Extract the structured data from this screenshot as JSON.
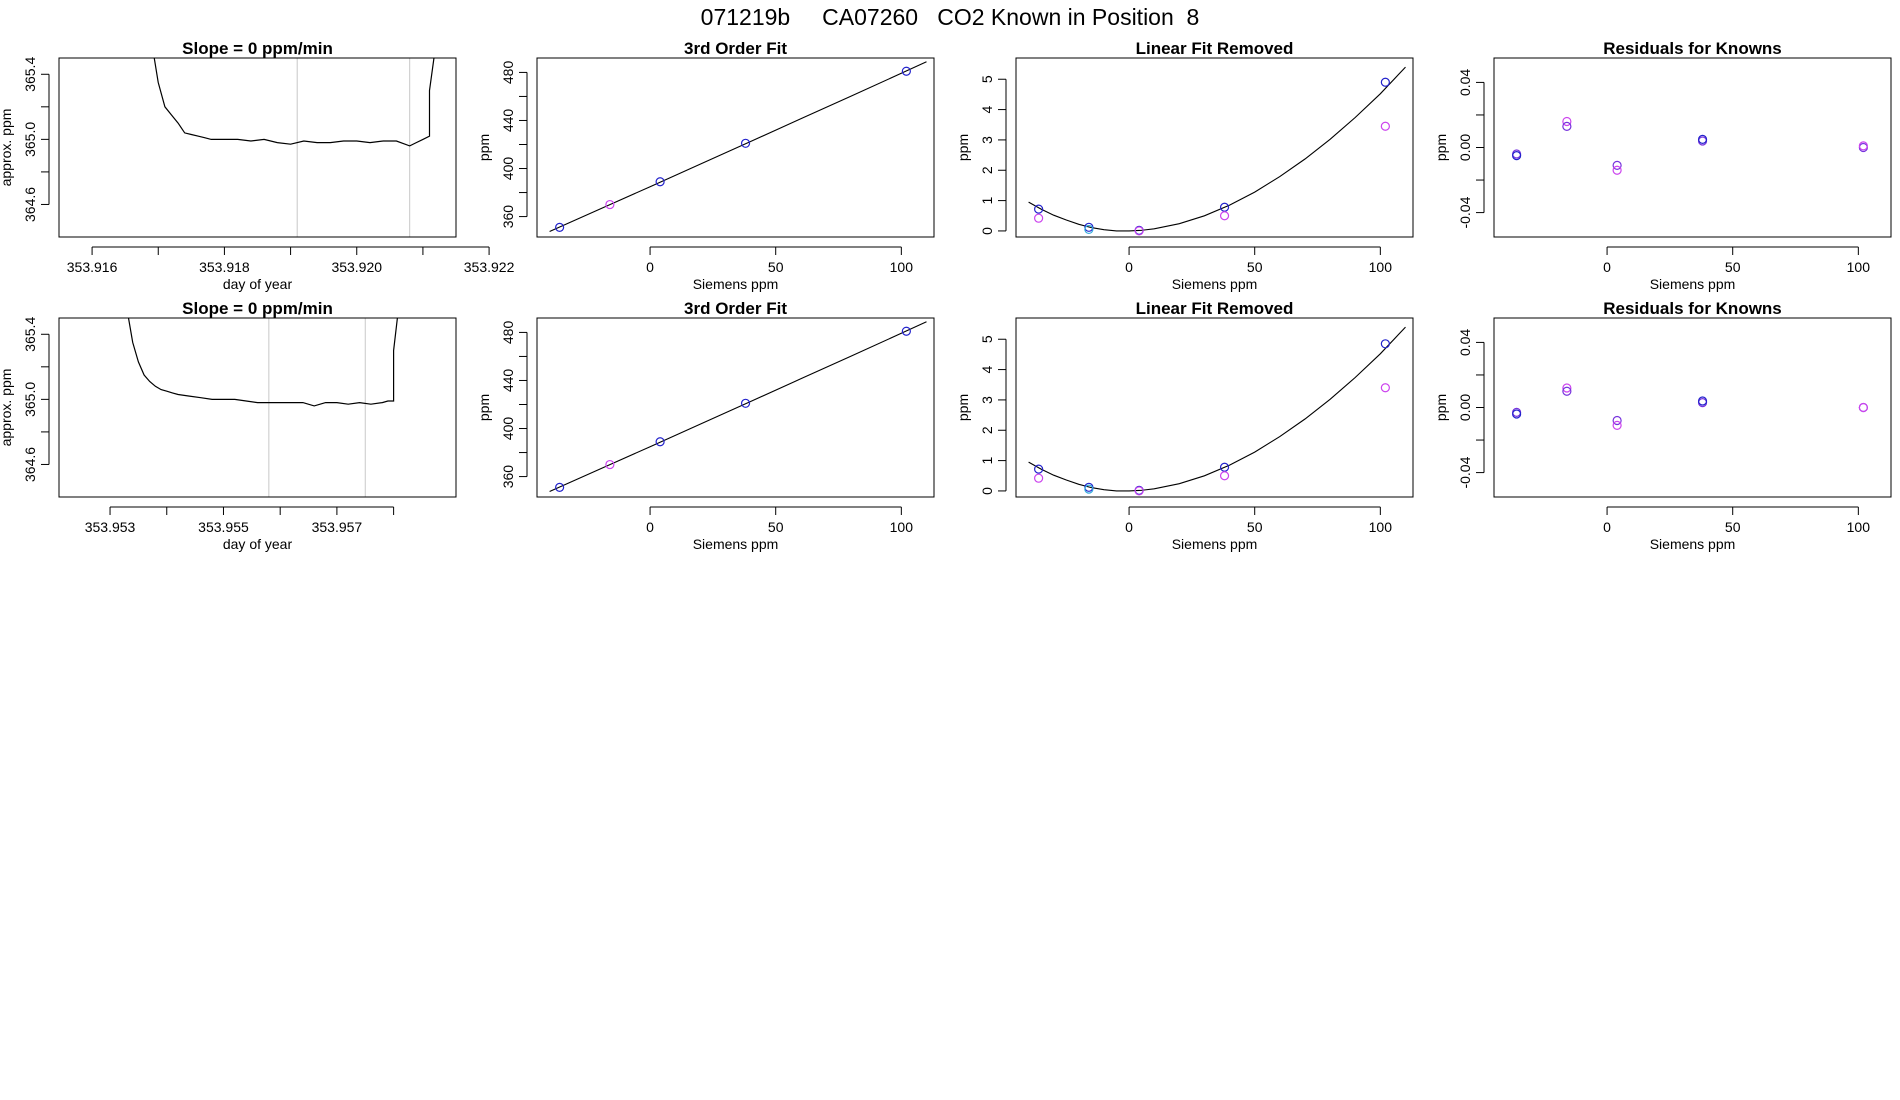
{
  "page": {
    "title": "071219b     CA07260   CO2 Known in Position  8"
  },
  "colors": {
    "line": "#000000",
    "frame": "#000000",
    "vline": "#c8c8c8",
    "blue": "#2222cc",
    "magenta": "#cc44ee",
    "cyan": "#33aadd",
    "purple": "#7733dd"
  },
  "chart_data": [
    {
      "id": "r1-slope",
      "type": "line",
      "title": "Slope =  0  ppm/min",
      "xlabel": "day of year",
      "ylabel": "approx. ppm",
      "xlim": [
        353.9155,
        353.9215
      ],
      "ylim": [
        364.4,
        365.5
      ],
      "xticks": [
        353.916,
        353.917,
        353.918,
        353.919,
        353.92,
        353.921,
        353.922
      ],
      "xticklabels": [
        "353.916",
        "",
        "353.918",
        "",
        "353.920",
        "",
        "353.922"
      ],
      "yticks": [
        364.6,
        364.8,
        365.0,
        365.2,
        365.4
      ],
      "yticklabels": [
        "364.6",
        "",
        "365.0",
        "",
        "365.4"
      ],
      "vlines": [
        353.9191,
        353.9208
      ],
      "x": [
        353.9169,
        353.917,
        353.9171,
        353.9172,
        353.9173,
        353.9174,
        353.9175,
        353.9176,
        353.9177,
        353.9178,
        353.918,
        353.9182,
        353.9184,
        353.9186,
        353.9188,
        353.919,
        353.9192,
        353.9194,
        353.9196,
        353.9198,
        353.92,
        353.9202,
        353.9204,
        353.9206,
        353.9208,
        353.9209,
        353.921,
        353.9211,
        353.9211,
        353.9212
      ],
      "y": [
        365.6,
        365.35,
        365.2,
        365.15,
        365.1,
        365.04,
        365.03,
        365.02,
        365.01,
        365.0,
        365.0,
        365.0,
        364.99,
        365.0,
        364.98,
        364.97,
        364.99,
        364.98,
        364.98,
        364.99,
        364.99,
        364.98,
        364.99,
        364.99,
        364.96,
        364.98,
        365.0,
        365.02,
        365.3,
        365.6
      ],
      "tick_color_marker": {
        "x": 353.92,
        "y": 364.99
      }
    },
    {
      "id": "r1-fit",
      "type": "scatter",
      "title": "3rd Order Fit",
      "xlabel": "Siemens ppm",
      "ylabel": "ppm",
      "xlim": [
        -45,
        113
      ],
      "ylim": [
        343,
        492
      ],
      "xticks": [
        0,
        50,
        100
      ],
      "xticklabels": [
        "0",
        "50",
        "100"
      ],
      "yticks": [
        360,
        380,
        400,
        420,
        440,
        460,
        480
      ],
      "yticklabels": [
        "360",
        "",
        "400",
        "",
        "440",
        "",
        "480"
      ],
      "fit_x": [
        -40,
        -20,
        0,
        20,
        40,
        60,
        80,
        100,
        110
      ],
      "fit_y": [
        347.6,
        366.2,
        384.9,
        403.7,
        422.5,
        441.4,
        460.3,
        479.3,
        488.8
      ],
      "points": [
        {
          "x": -36,
          "y": 351,
          "color": "blue"
        },
        {
          "x": -16,
          "y": 370,
          "color": "magenta"
        },
        {
          "x": 4,
          "y": 389,
          "color": "blue"
        },
        {
          "x": 38,
          "y": 421,
          "color": "blue"
        },
        {
          "x": 102,
          "y": 481,
          "color": "blue"
        }
      ]
    },
    {
      "id": "r1-linrem",
      "type": "scatter",
      "title": "Linear Fit Removed",
      "xlabel": "Siemens ppm",
      "ylabel": "ppm",
      "xlim": [
        -45,
        113
      ],
      "ylim": [
        -0.2,
        5.7
      ],
      "xticks": [
        0,
        50,
        100
      ],
      "xticklabels": [
        "0",
        "50",
        "100"
      ],
      "yticks": [
        0,
        1,
        2,
        3,
        4,
        5
      ],
      "yticklabels": [
        "0",
        "1",
        "2",
        "3",
        "4",
        "5"
      ],
      "fit_x": [
        -40,
        -35,
        -30,
        -25,
        -20,
        -15,
        -10,
        -5,
        0,
        5,
        10,
        20,
        30,
        40,
        50,
        60,
        70,
        80,
        90,
        100,
        110
      ],
      "fit_y": [
        0.95,
        0.72,
        0.52,
        0.36,
        0.22,
        0.11,
        0.04,
        0.0,
        0.0,
        0.02,
        0.07,
        0.24,
        0.5,
        0.85,
        1.28,
        1.79,
        2.37,
        3.02,
        3.74,
        4.52,
        5.4
      ],
      "points": [
        {
          "x": -36,
          "y": 0.72,
          "color": "blue"
        },
        {
          "x": -36,
          "y": 0.42,
          "color": "magenta"
        },
        {
          "x": -16,
          "y": 0.12,
          "color": "blue"
        },
        {
          "x": -16,
          "y": 0.05,
          "color": "cyan"
        },
        {
          "x": 4,
          "y": 0.02,
          "color": "blue"
        },
        {
          "x": 4,
          "y": 0.0,
          "color": "magenta"
        },
        {
          "x": 38,
          "y": 0.78,
          "color": "blue"
        },
        {
          "x": 38,
          "y": 0.5,
          "color": "magenta"
        },
        {
          "x": 102,
          "y": 4.9,
          "color": "blue"
        },
        {
          "x": 102,
          "y": 3.45,
          "color": "magenta"
        }
      ]
    },
    {
      "id": "r1-resid",
      "type": "scatter",
      "title": "Residuals for Knowns",
      "xlabel": "Siemens ppm",
      "ylabel": "ppm",
      "xlim": [
        -45,
        113
      ],
      "ylim": [
        -0.055,
        0.055
      ],
      "xticks": [
        0,
        50,
        100
      ],
      "xticklabels": [
        "0",
        "50",
        "100"
      ],
      "yticks": [
        -0.04,
        -0.02,
        0.0,
        0.02,
        0.04
      ],
      "yticklabels": [
        "-0.04",
        "",
        "0.00",
        "",
        "0.04"
      ],
      "points": [
        {
          "x": -36,
          "y": -0.004,
          "color": "purple"
        },
        {
          "x": -36,
          "y": -0.005,
          "color": "blue"
        },
        {
          "x": -16,
          "y": 0.016,
          "color": "magenta"
        },
        {
          "x": -16,
          "y": 0.013,
          "color": "purple"
        },
        {
          "x": 4,
          "y": -0.011,
          "color": "purple"
        },
        {
          "x": 4,
          "y": -0.014,
          "color": "magenta"
        },
        {
          "x": 38,
          "y": 0.004,
          "color": "purple"
        },
        {
          "x": 38,
          "y": 0.005,
          "color": "blue"
        },
        {
          "x": 102,
          "y": 0.0,
          "color": "purple"
        },
        {
          "x": 102,
          "y": 0.001,
          "color": "magenta"
        }
      ]
    },
    {
      "id": "r2-slope",
      "type": "line",
      "title": "Slope =  0  ppm/min",
      "xlabel": "day of year",
      "ylabel": "approx. ppm",
      "xlim": [
        353.9521,
        353.9591
      ],
      "ylim": [
        364.4,
        365.5
      ],
      "xticks": [
        353.953,
        353.954,
        353.955,
        353.956,
        353.957,
        353.958
      ],
      "xticklabels": [
        "353.953",
        "",
        "353.955",
        "",
        "353.957",
        ""
      ],
      "yticks": [
        364.6,
        364.8,
        365.0,
        365.2,
        365.4
      ],
      "yticklabels": [
        "364.6",
        "",
        "365.0",
        "",
        "365.4"
      ],
      "vlines": [
        353.9558,
        353.9575
      ],
      "x": [
        353.9533,
        353.9534,
        353.9535,
        353.9536,
        353.9537,
        353.9538,
        353.9539,
        353.954,
        353.9541,
        353.9542,
        353.9544,
        353.9546,
        353.9548,
        353.955,
        353.9552,
        353.9554,
        353.9556,
        353.9558,
        353.956,
        353.9562,
        353.9564,
        353.9566,
        353.9568,
        353.957,
        353.9572,
        353.9574,
        353.9576,
        353.9578,
        353.9579,
        353.958,
        353.958,
        353.9581
      ],
      "y": [
        365.55,
        365.35,
        365.23,
        365.15,
        365.11,
        365.08,
        365.06,
        365.05,
        365.04,
        365.03,
        365.02,
        365.01,
        365.0,
        365.0,
        365.0,
        364.99,
        364.98,
        364.98,
        364.98,
        364.98,
        364.98,
        364.96,
        364.98,
        364.98,
        364.97,
        364.98,
        364.97,
        364.98,
        364.99,
        364.99,
        365.3,
        365.6
      ]
    },
    {
      "id": "r2-fit",
      "type": "scatter",
      "title": "3rd Order Fit",
      "xlabel": "Siemens ppm",
      "ylabel": "ppm",
      "xlim": [
        -45,
        113
      ],
      "ylim": [
        343,
        492
      ],
      "xticks": [
        0,
        50,
        100
      ],
      "xticklabels": [
        "0",
        "50",
        "100"
      ],
      "yticks": [
        360,
        380,
        400,
        420,
        440,
        460,
        480
      ],
      "yticklabels": [
        "360",
        "",
        "400",
        "",
        "440",
        "",
        "480"
      ],
      "fit_x": [
        -40,
        -20,
        0,
        20,
        40,
        60,
        80,
        100,
        110
      ],
      "fit_y": [
        347.6,
        366.2,
        384.9,
        403.7,
        422.5,
        441.4,
        460.3,
        479.3,
        488.8
      ],
      "points": [
        {
          "x": -36,
          "y": 351,
          "color": "blue"
        },
        {
          "x": -16,
          "y": 370,
          "color": "magenta"
        },
        {
          "x": 4,
          "y": 389,
          "color": "blue"
        },
        {
          "x": 38,
          "y": 421,
          "color": "blue"
        },
        {
          "x": 102,
          "y": 481,
          "color": "blue"
        }
      ]
    },
    {
      "id": "r2-linrem",
      "type": "scatter",
      "title": "Linear Fit Removed",
      "xlabel": "Siemens ppm",
      "ylabel": "ppm",
      "xlim": [
        -45,
        113
      ],
      "ylim": [
        -0.2,
        5.7
      ],
      "xticks": [
        0,
        50,
        100
      ],
      "xticklabels": [
        "0",
        "50",
        "100"
      ],
      "yticks": [
        0,
        1,
        2,
        3,
        4,
        5
      ],
      "yticklabels": [
        "0",
        "1",
        "2",
        "3",
        "4",
        "5"
      ],
      "fit_x": [
        -40,
        -35,
        -30,
        -25,
        -20,
        -15,
        -10,
        -5,
        0,
        5,
        10,
        20,
        30,
        40,
        50,
        60,
        70,
        80,
        90,
        100,
        110
      ],
      "fit_y": [
        0.95,
        0.72,
        0.52,
        0.36,
        0.22,
        0.11,
        0.04,
        0.0,
        0.0,
        0.02,
        0.07,
        0.24,
        0.5,
        0.85,
        1.28,
        1.79,
        2.37,
        3.02,
        3.74,
        4.52,
        5.4
      ],
      "points": [
        {
          "x": -36,
          "y": 0.72,
          "color": "blue"
        },
        {
          "x": -36,
          "y": 0.42,
          "color": "magenta"
        },
        {
          "x": -16,
          "y": 0.12,
          "color": "blue"
        },
        {
          "x": -16,
          "y": 0.06,
          "color": "cyan"
        },
        {
          "x": 4,
          "y": 0.02,
          "color": "blue"
        },
        {
          "x": 4,
          "y": 0.0,
          "color": "magenta"
        },
        {
          "x": 38,
          "y": 0.78,
          "color": "blue"
        },
        {
          "x": 38,
          "y": 0.5,
          "color": "magenta"
        },
        {
          "x": 102,
          "y": 4.85,
          "color": "blue"
        },
        {
          "x": 102,
          "y": 3.4,
          "color": "magenta"
        }
      ]
    },
    {
      "id": "r2-resid",
      "type": "scatter",
      "title": "Residuals for Knowns",
      "xlabel": "Siemens ppm",
      "ylabel": "ppm",
      "xlim": [
        -45,
        113
      ],
      "ylim": [
        -0.055,
        0.055
      ],
      "xticks": [
        0,
        50,
        100
      ],
      "xticklabels": [
        "0",
        "50",
        "100"
      ],
      "yticks": [
        -0.04,
        -0.02,
        0.0,
        0.02,
        0.04
      ],
      "yticklabels": [
        "-0.04",
        "",
        "0.00",
        "",
        "0.04"
      ],
      "points": [
        {
          "x": -36,
          "y": -0.003,
          "color": "purple"
        },
        {
          "x": -36,
          "y": -0.004,
          "color": "blue"
        },
        {
          "x": -16,
          "y": 0.012,
          "color": "magenta"
        },
        {
          "x": -16,
          "y": 0.01,
          "color": "purple"
        },
        {
          "x": 4,
          "y": -0.008,
          "color": "purple"
        },
        {
          "x": 4,
          "y": -0.011,
          "color": "magenta"
        },
        {
          "x": 38,
          "y": 0.003,
          "color": "purple"
        },
        {
          "x": 38,
          "y": 0.004,
          "color": "blue"
        },
        {
          "x": 102,
          "y": 0.0,
          "color": "purple"
        },
        {
          "x": 102,
          "y": 0.0,
          "color": "magenta"
        }
      ]
    }
  ]
}
